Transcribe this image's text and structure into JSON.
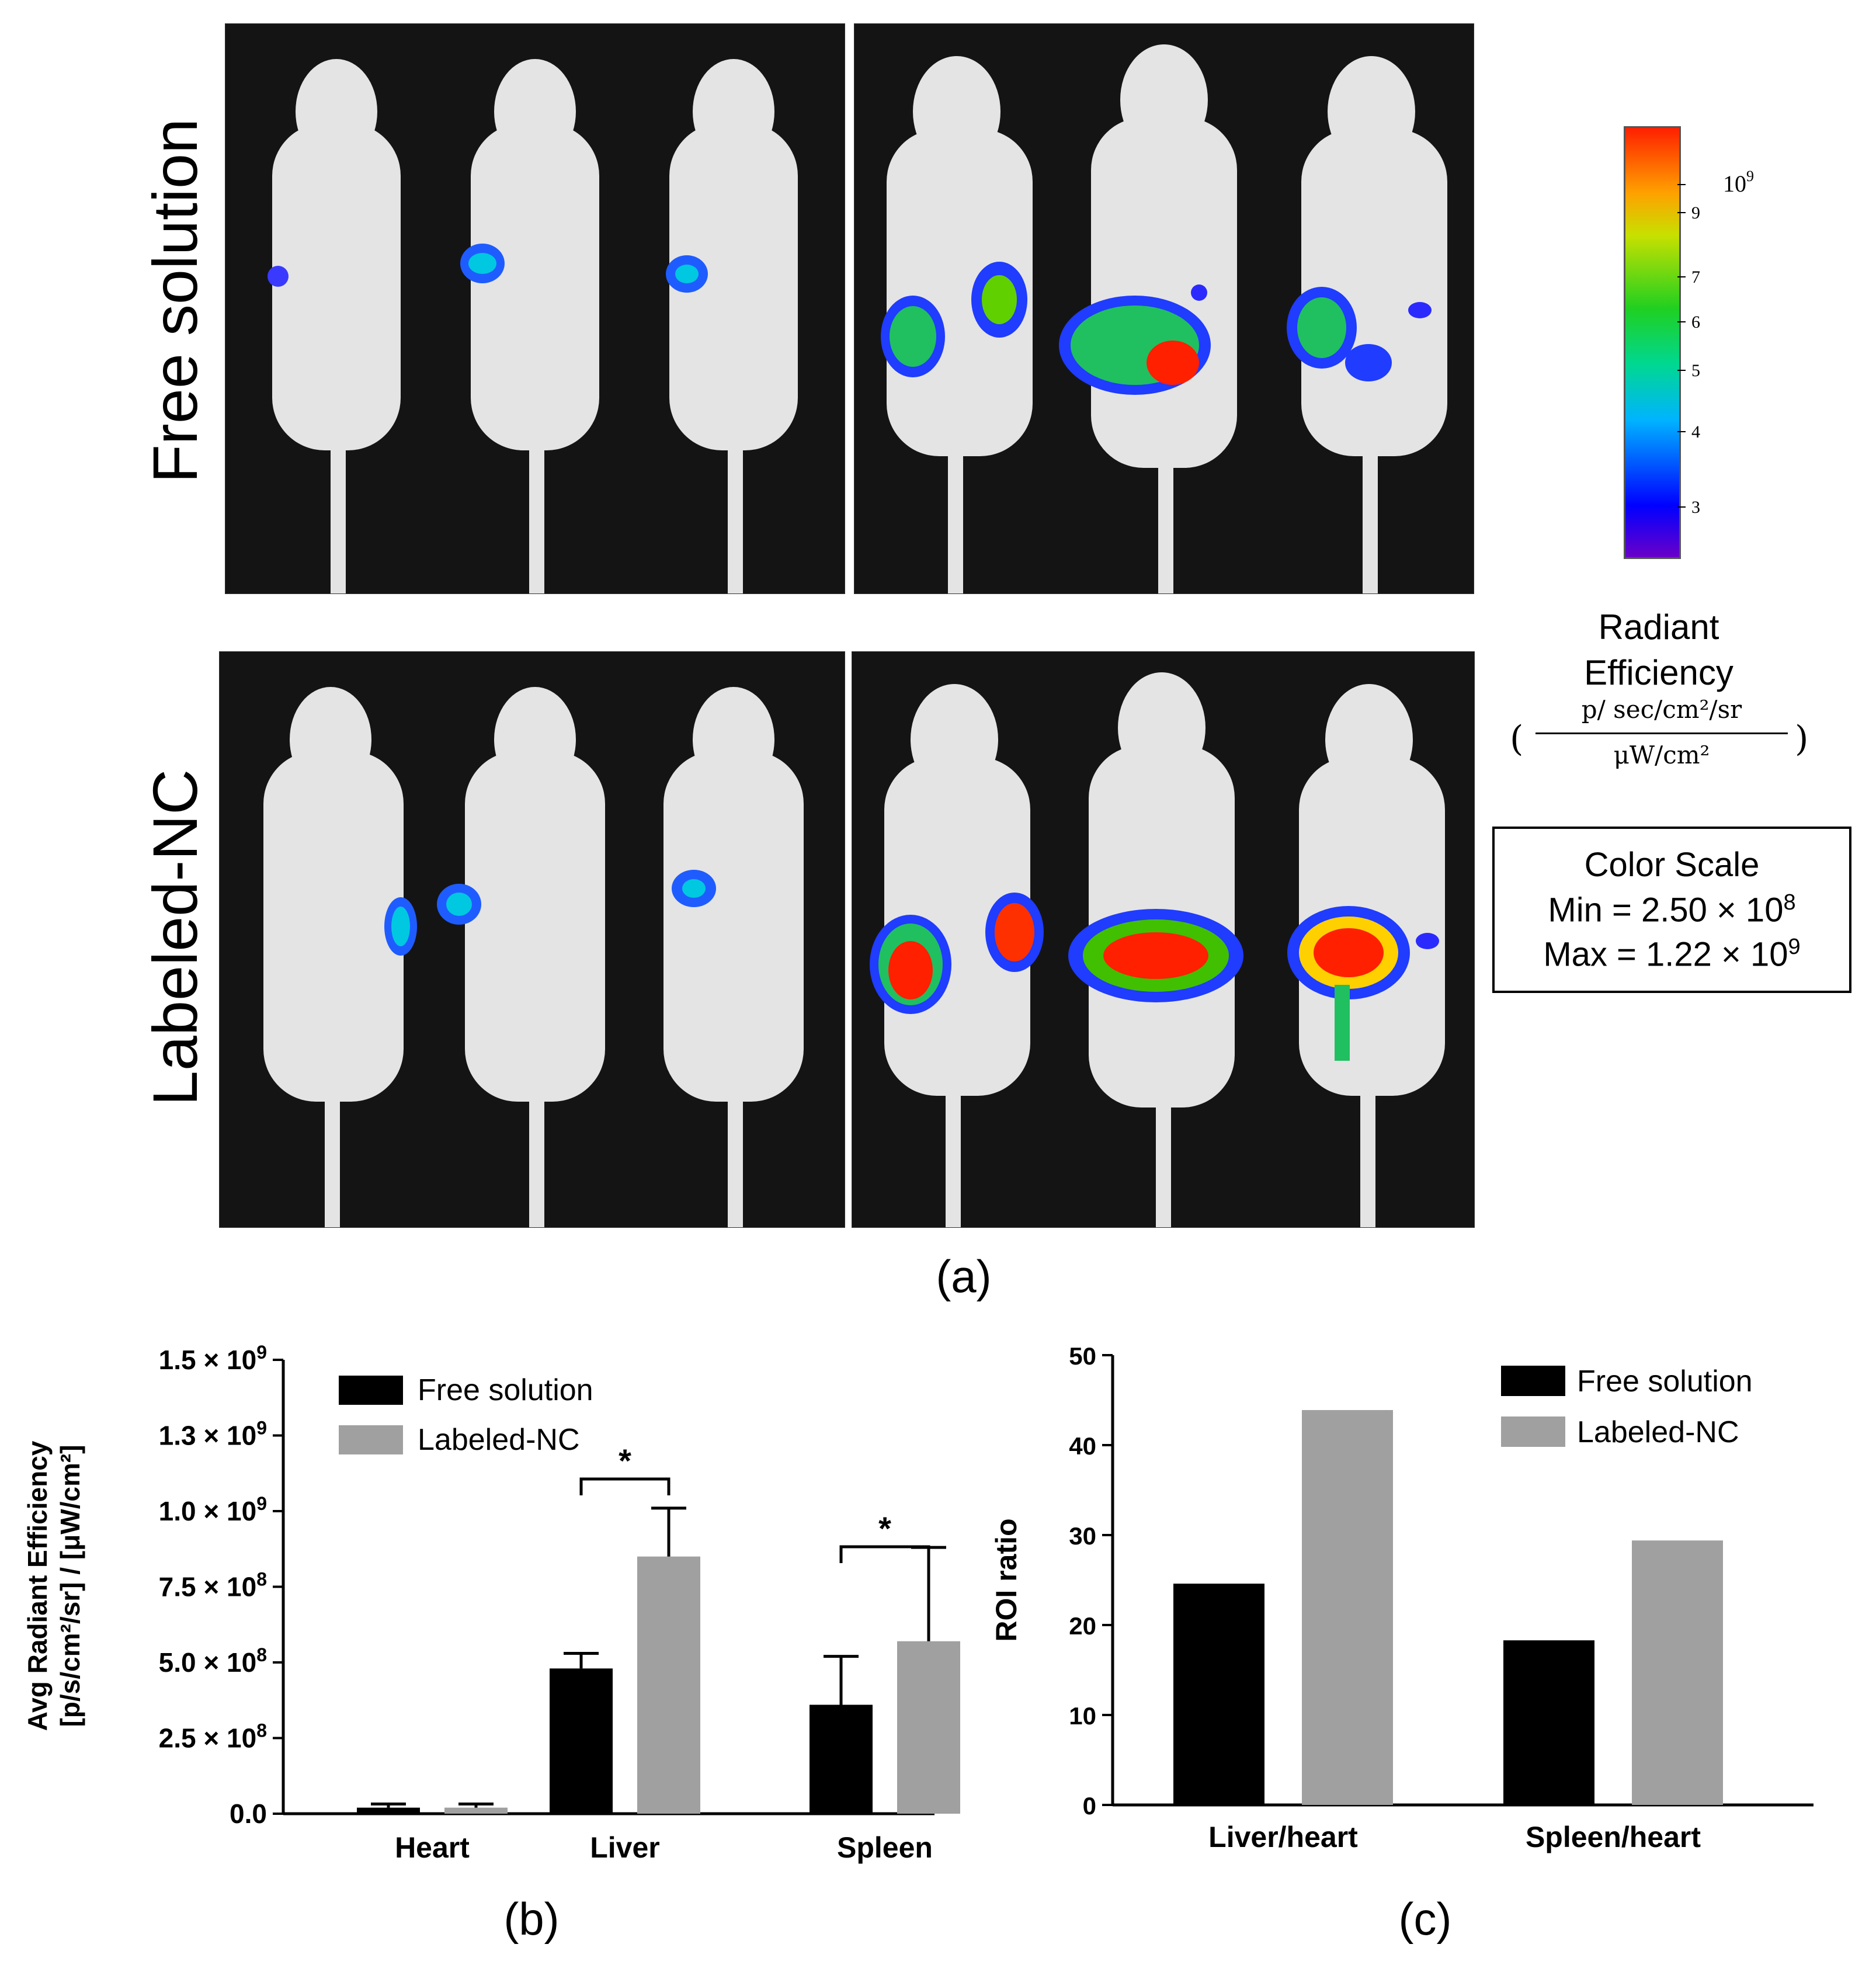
{
  "panel_a": {
    "row_labels": [
      "Free solution",
      "Labeled-NC"
    ],
    "label": "(a)",
    "colorbar": {
      "top_label": "10",
      "top_label_exp": "9",
      "tick_labels": [
        "9",
        "7",
        "6",
        "5",
        "4",
        "3"
      ],
      "title_line1": "Radiant",
      "title_line2": "Efficiency",
      "unit_numerator": "p/ sec/cm²/sr",
      "unit_denominator": "μW/cm²",
      "paren_open": "(",
      "paren_close": ")"
    },
    "color_scale": {
      "title": "Color Scale",
      "min_prefix": "Min = 2.50 × 10",
      "min_exp": "8",
      "max_prefix": "Max = 1.22 × 10",
      "max_exp": "9"
    }
  },
  "panel_b_label": "(b)",
  "panel_c_label": "(c)",
  "chart_data": [
    {
      "type": "bar",
      "title": "",
      "ylabel_line1": "Avg Radiant Efficiency",
      "ylabel_line2": "[p/s/cm²/sr] / [μW/cm²]",
      "categories": [
        "Heart",
        "Liver",
        "Spleen"
      ],
      "series": [
        {
          "name": "Free solution",
          "values": [
            20000000,
            480000000,
            360000000
          ],
          "errors": [
            12000000,
            50000000,
            160000000
          ],
          "color": "#000000"
        },
        {
          "name": "Labeled-NC",
          "values": [
            20000000,
            850000000,
            570000000
          ],
          "errors": [
            12000000,
            160000000,
            310000000
          ],
          "color": "#a0a0a0"
        }
      ],
      "ylim": [
        0,
        1500000000
      ],
      "yticks": [
        {
          "base": "0.0",
          "exp": ""
        },
        {
          "base": "2.5 × 10",
          "exp": "8"
        },
        {
          "base": "5.0 × 10",
          "exp": "8"
        },
        {
          "base": "7.5 × 10",
          "exp": "8"
        },
        {
          "base": "1.0 × 10",
          "exp": "9"
        },
        {
          "base": "1.3 × 10",
          "exp": "9"
        },
        {
          "base": "1.5 × 10",
          "exp": "9"
        }
      ],
      "significance": [
        {
          "category": "Liver",
          "label": "*"
        },
        {
          "category": "Spleen",
          "label": "*"
        }
      ],
      "legend_position": "top-left"
    },
    {
      "type": "bar",
      "title": "",
      "ylabel": "ROI ratio",
      "categories": [
        "Liver/heart",
        "Spleen/heart"
      ],
      "series": [
        {
          "name": "Free solution",
          "values": [
            24.6,
            18.3
          ],
          "color": "#000000"
        },
        {
          "name": "Labeled-NC",
          "values": [
            43.9,
            29.4
          ],
          "color": "#a0a0a0"
        }
      ],
      "ylim": [
        0,
        50
      ],
      "yticks": [
        "0",
        "10",
        "20",
        "30",
        "40",
        "50"
      ],
      "legend_position": "top-right"
    }
  ]
}
